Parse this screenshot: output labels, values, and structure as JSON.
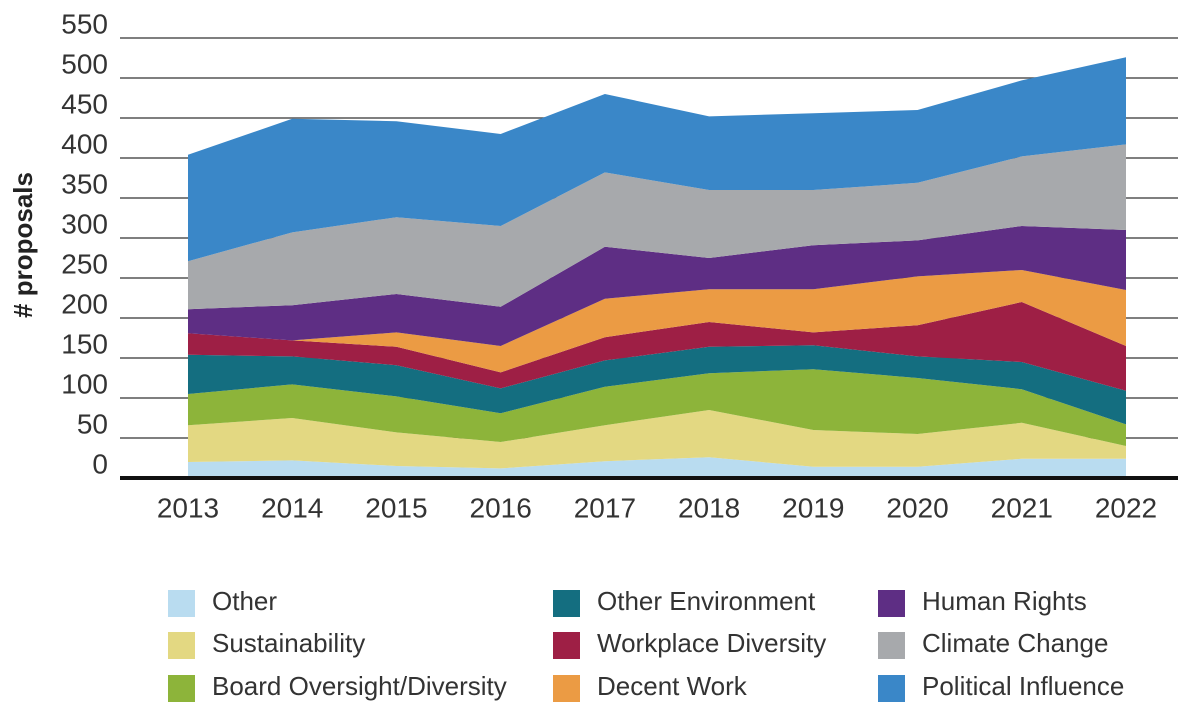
{
  "chart_data": {
    "type": "area",
    "stacked": true,
    "ylabel": "# proposals",
    "categories": [
      "2013",
      "2014",
      "2015",
      "2016",
      "2017",
      "2018",
      "2019",
      "2020",
      "2021",
      "2022"
    ],
    "ylim": [
      0,
      550
    ],
    "yticks": [
      0,
      50,
      100,
      150,
      200,
      250,
      300,
      350,
      400,
      450,
      500,
      550
    ],
    "grid": true,
    "legend": "bottom",
    "series": [
      {
        "name": "Other",
        "color": "#b9dcf0",
        "values": [
          20,
          22,
          15,
          12,
          21,
          26,
          14,
          14,
          24,
          24
        ]
      },
      {
        "name": "Sustainability",
        "color": "#e3d882",
        "values": [
          46,
          53,
          42,
          33,
          45,
          59,
          46,
          41,
          45,
          16
        ]
      },
      {
        "name": "Board Oversight/Diversity",
        "color": "#8db43a",
        "values": [
          39,
          42,
          45,
          36,
          48,
          46,
          76,
          70,
          42,
          27
        ]
      },
      {
        "name": "Other Environment",
        "color": "#146e80",
        "values": [
          49,
          35,
          39,
          31,
          33,
          33,
          30,
          27,
          34,
          42
        ]
      },
      {
        "name": "Workplace Diversity",
        "color": "#9e1f45",
        "values": [
          27,
          20,
          23,
          20,
          29,
          31,
          16,
          39,
          75,
          56
        ]
      },
      {
        "name": "Decent Work",
        "color": "#eb9b44",
        "values": [
          0,
          0,
          18,
          33,
          48,
          41,
          54,
          61,
          40,
          70
        ]
      },
      {
        "name": "Human Rights",
        "color": "#5e2e84",
        "values": [
          30,
          44,
          48,
          49,
          65,
          39,
          55,
          45,
          55,
          75
        ]
      },
      {
        "name": "Climate Change",
        "color": "#a7a9ac",
        "values": [
          60,
          91,
          96,
          101,
          93,
          85,
          69,
          72,
          87,
          107
        ]
      },
      {
        "name": "Political Influence",
        "color": "#3a87c8",
        "values": [
          133,
          142,
          120,
          115,
          98,
          92,
          96,
          91,
          95,
          109
        ]
      }
    ]
  }
}
